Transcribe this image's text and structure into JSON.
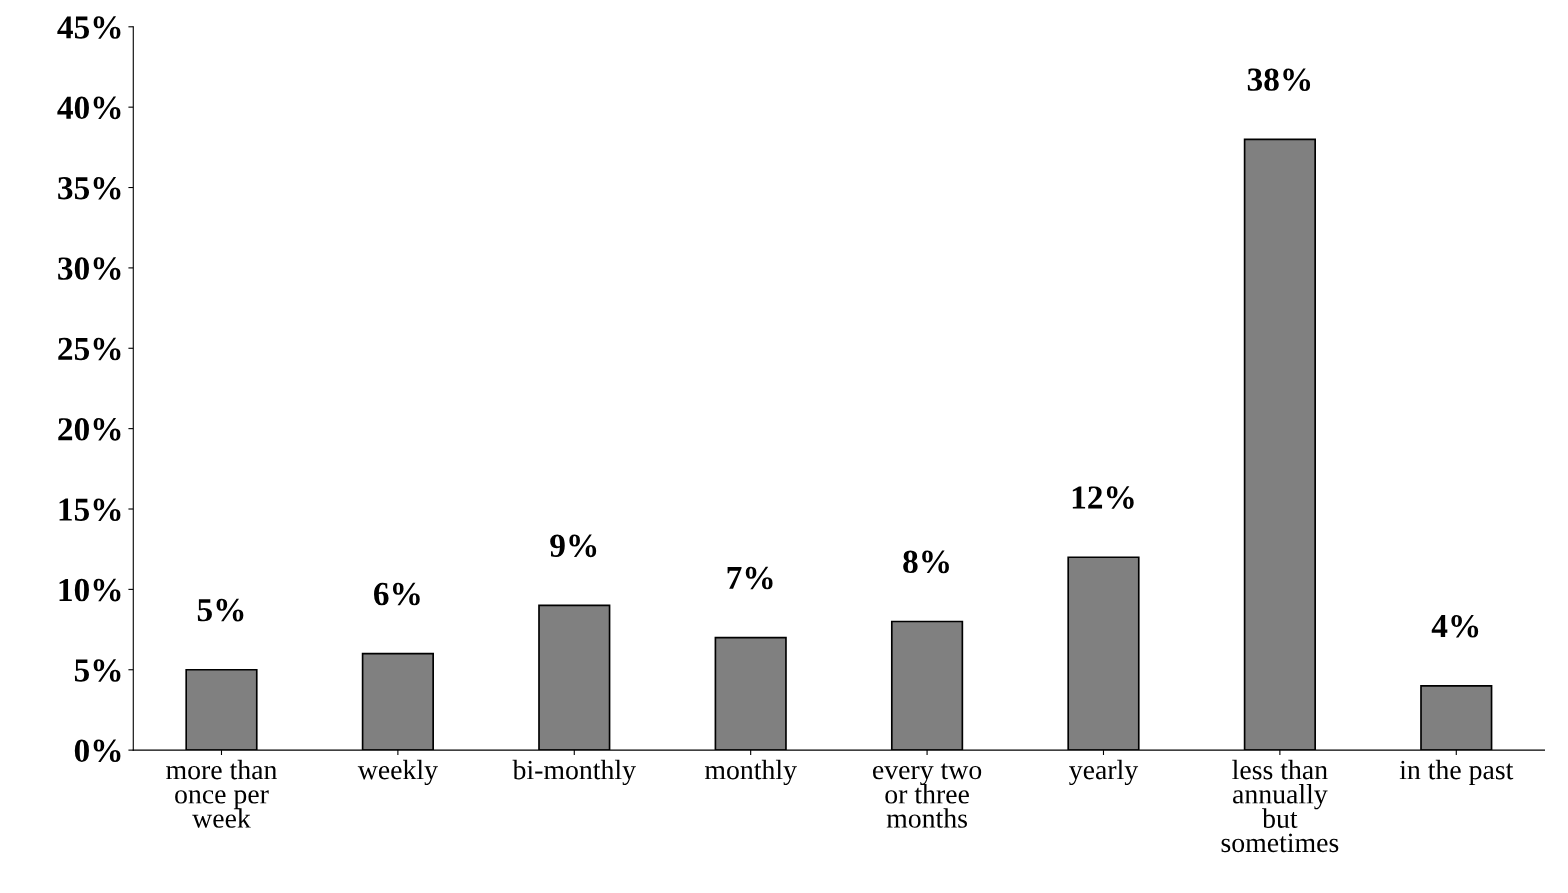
{
  "chart_data": {
    "type": "bar",
    "categories": [
      "more than\nonce per\nweek",
      "weekly",
      "bi-monthly",
      "monthly",
      "every two\nor three\nmonths",
      "yearly",
      "less than\nannually\nbut\nsometimes",
      "in the past"
    ],
    "values": [
      5,
      6,
      9,
      7,
      8,
      12,
      38,
      4
    ],
    "value_labels": [
      "5%",
      "6%",
      "9%",
      "7%",
      "8%",
      "12%",
      "38%",
      "4%"
    ],
    "color": "#808080",
    "ylim": [
      0,
      45
    ],
    "yticks": [
      {
        "value": 0,
        "label": "0%"
      },
      {
        "value": 5,
        "label": "5%"
      },
      {
        "value": 10,
        "label": "10%"
      },
      {
        "value": 15,
        "label": "15%"
      },
      {
        "value": 20,
        "label": "20%"
      },
      {
        "value": 25,
        "label": "25%"
      },
      {
        "value": 30,
        "label": "30%"
      },
      {
        "value": 35,
        "label": "35%"
      },
      {
        "value": 40,
        "label": "40%"
      },
      {
        "value": 45,
        "label": "45%"
      }
    ],
    "grid": false,
    "legend": false
  }
}
